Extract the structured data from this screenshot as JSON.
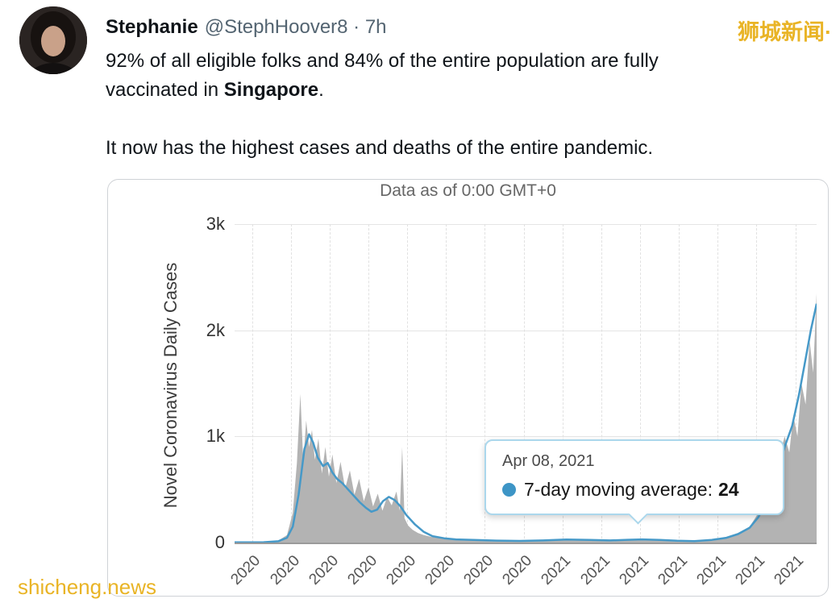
{
  "tweet": {
    "author": "Stephanie",
    "meta": "@StephHoover8 · 7h",
    "body": {
      "line1": "92% of all eligible folks and 84% of the entire population are fully",
      "line2_prefix": "vaccinated in ",
      "line2_bold": "Singapore",
      "line2_suffix": ".",
      "para2": "It now has the highest cases and deaths of the entire pandemic."
    }
  },
  "watermarks": {
    "top_right": "狮城新闻·",
    "bottom_left": "shicheng.news",
    "color": "#e9b426"
  },
  "chart_data": {
    "type": "area",
    "title": "Data as of 0:00 GMT+0",
    "ylabel": "Novel Coronavirus Daily Cases",
    "xlabel": "",
    "ylim": [
      0,
      3000
    ],
    "grid": true,
    "yticks": [
      {
        "label": "3k",
        "value": 3000
      },
      {
        "label": "2k",
        "value": 2000
      },
      {
        "label": "1k",
        "value": 1000
      },
      {
        "label": "0",
        "value": 0
      }
    ],
    "x_tick_labels": [
      "2020",
      "2020",
      "2020",
      "2020",
      "2020",
      "2020",
      "2020",
      "2020",
      "2021",
      "2021",
      "2021",
      "2021",
      "2021",
      "2021",
      "2021"
    ],
    "series": [
      {
        "name": "daily-new-cases",
        "style": "area",
        "color": "#b3b3b3",
        "x": [
          0,
          0.05,
          0.075,
          0.09,
          0.1,
          0.107,
          0.113,
          0.118,
          0.123,
          0.128,
          0.133,
          0.138,
          0.144,
          0.15,
          0.156,
          0.162,
          0.168,
          0.175,
          0.182,
          0.19,
          0.198,
          0.206,
          0.214,
          0.222,
          0.23,
          0.238,
          0.246,
          0.254,
          0.262,
          0.27,
          0.278,
          0.284,
          0.288,
          0.292,
          0.298,
          0.306,
          0.315,
          0.325,
          0.34,
          0.36,
          0.39,
          0.42,
          0.46,
          0.5,
          0.54,
          0.58,
          0.61,
          0.645,
          0.675,
          0.7,
          0.73,
          0.76,
          0.79,
          0.82,
          0.845,
          0.865,
          0.885,
          0.9,
          0.912,
          0.924,
          0.936,
          0.945,
          0.953,
          0.96,
          0.967,
          0.974,
          0.981,
          0.988,
          0.994,
          1.0
        ],
        "y": [
          2,
          4,
          18,
          70,
          280,
          750,
          1400,
          760,
          1150,
          900,
          1060,
          780,
          980,
          650,
          900,
          620,
          830,
          560,
          760,
          510,
          680,
          450,
          600,
          390,
          520,
          340,
          460,
          300,
          430,
          350,
          480,
          300,
          900,
          230,
          160,
          120,
          90,
          70,
          50,
          38,
          28,
          22,
          16,
          13,
          20,
          30,
          25,
          20,
          28,
          34,
          25,
          18,
          14,
          26,
          50,
          90,
          150,
          280,
          430,
          600,
          800,
          1000,
          850,
          1200,
          1000,
          1500,
          1300,
          1900,
          1600,
          2350
        ]
      },
      {
        "name": "7-day-moving-average",
        "style": "line",
        "color": "#4699c8",
        "x": [
          0,
          0.05,
          0.075,
          0.09,
          0.1,
          0.11,
          0.12,
          0.128,
          0.135,
          0.143,
          0.152,
          0.16,
          0.168,
          0.176,
          0.185,
          0.195,
          0.205,
          0.215,
          0.225,
          0.235,
          0.245,
          0.255,
          0.265,
          0.275,
          0.285,
          0.295,
          0.31,
          0.325,
          0.34,
          0.36,
          0.38,
          0.41,
          0.45,
          0.49,
          0.53,
          0.57,
          0.61,
          0.645,
          0.675,
          0.7,
          0.73,
          0.76,
          0.79,
          0.82,
          0.845,
          0.865,
          0.885,
          0.9,
          0.915,
          0.93,
          0.945,
          0.958,
          0.97,
          0.98,
          0.99,
          1.0
        ],
        "y": [
          2,
          3,
          12,
          45,
          150,
          450,
          880,
          1020,
          940,
          800,
          720,
          750,
          660,
          600,
          560,
          500,
          440,
          380,
          330,
          290,
          310,
          390,
          430,
          400,
          340,
          260,
          170,
          100,
          60,
          40,
          30,
          24,
          18,
          15,
          20,
          28,
          24,
          20,
          26,
          30,
          24,
          17,
          14,
          25,
          45,
          80,
          140,
          240,
          400,
          620,
          900,
          1100,
          1400,
          1700,
          2000,
          2250
        ]
      }
    ],
    "tooltip": {
      "date": "Apr 08, 2021",
      "label": "7-day moving average:",
      "value": "24",
      "dot_color": "#3d95c6"
    }
  }
}
